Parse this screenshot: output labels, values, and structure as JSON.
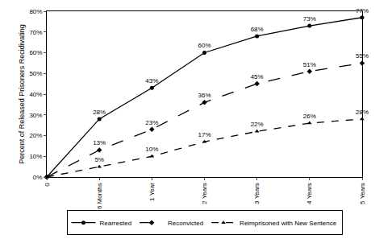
{
  "chart_data": {
    "type": "line",
    "y_label": "Percent of Released Prisoners Recidivating",
    "categories": [
      "0",
      "6 Months",
      "1 Year",
      "2 Years",
      "3 Years",
      "4 Years",
      "5 Years"
    ],
    "series": [
      {
        "name": "Rearrested",
        "color": "#000000",
        "marker": "circle",
        "line_style": "solid",
        "values": [
          0,
          28,
          43,
          60,
          68,
          73,
          77
        ],
        "value_labels": [
          null,
          "28%",
          "43%",
          "60%",
          "68%",
          "73%",
          "77%"
        ]
      },
      {
        "name": "Reconvicted",
        "color": "#000000",
        "marker": "diamond",
        "line_style": "longdash",
        "values": [
          0,
          13,
          23,
          36,
          45,
          51,
          55
        ],
        "value_labels": [
          null,
          "13%",
          "23%",
          "36%",
          "45%",
          "51%",
          "55%"
        ]
      },
      {
        "name": "Reimprisoned with New Sentence",
        "color": "#000000",
        "marker": "triangle-up",
        "line_style": "dash",
        "values": [
          0,
          5,
          10,
          17,
          22,
          26,
          28
        ],
        "value_labels": [
          null,
          "5%",
          "10%",
          "17%",
          "22%",
          "26%",
          "28%"
        ]
      }
    ],
    "ylim": [
      0,
      80
    ],
    "yticks": [
      {
        "value": 0,
        "label": "0%"
      },
      {
        "value": 10,
        "label": "10%"
      },
      {
        "value": 20,
        "label": "20%"
      },
      {
        "value": 30,
        "label": "30%"
      },
      {
        "value": 40,
        "label": "40%"
      },
      {
        "value": 50,
        "label": "50%"
      },
      {
        "value": 60,
        "label": "60%"
      },
      {
        "value": 70,
        "label": "70%"
      },
      {
        "value": 80,
        "label": "80%"
      }
    ],
    "grid": false,
    "legend": "bottom",
    "data_labels": true
  }
}
